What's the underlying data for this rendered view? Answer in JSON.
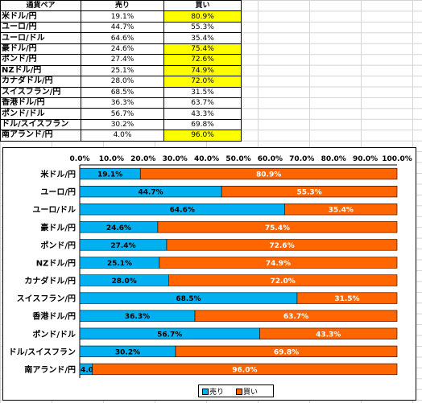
{
  "table": {
    "headers": [
      "通貨ペア",
      "売り",
      "買い"
    ],
    "rows": [
      {
        "pair": "米ドル/円",
        "sell": "19.1%",
        "buy": "80.9%",
        "buy_highlight": true
      },
      {
        "pair": "ユーロ/円",
        "sell": "44.7%",
        "buy": "55.3%",
        "buy_highlight": false
      },
      {
        "pair": "ユーロ/ドル",
        "sell": "64.6%",
        "buy": "35.4%",
        "buy_highlight": false
      },
      {
        "pair": "豪ドル/円",
        "sell": "24.6%",
        "buy": "75.4%",
        "buy_highlight": true
      },
      {
        "pair": "ポンド/円",
        "sell": "27.4%",
        "buy": "72.6%",
        "buy_highlight": true
      },
      {
        "pair": "NZドル/円",
        "sell": "25.1%",
        "buy": "74.9%",
        "buy_highlight": true
      },
      {
        "pair": "カナダドル/円",
        "sell": "28.0%",
        "buy": "72.0%",
        "buy_highlight": true
      },
      {
        "pair": "スイスフラン/円",
        "sell": "68.5%",
        "buy": "31.5%",
        "buy_highlight": false
      },
      {
        "pair": "香港ドル/円",
        "sell": "36.3%",
        "buy": "63.7%",
        "buy_highlight": false
      },
      {
        "pair": "ポンド/ドル",
        "sell": "56.7%",
        "buy": "43.3%",
        "buy_highlight": false
      },
      {
        "pair": "ドル/スイスフラン",
        "sell": "30.2%",
        "buy": "69.8%",
        "buy_highlight": false
      },
      {
        "pair": "南アランド/円",
        "sell": "4.0%",
        "buy": "96.0%",
        "buy_highlight": true
      }
    ],
    "highlight_color": "#ffff00"
  },
  "chart_data": {
    "type": "bar",
    "orientation": "horizontal",
    "stacked": "percent",
    "categories": [
      "米ドル/円",
      "ユーロ/円",
      "ユーロ/ドル",
      "豪ドル/円",
      "ポンド/円",
      "NZドル/円",
      "カナダドル/円",
      "スイスフラン/円",
      "香港ドル/円",
      "ポンド/ドル",
      "ドル/スイスフラン",
      "南アランド/円"
    ],
    "series": [
      {
        "name": "売り",
        "color": "#00b0f0",
        "values": [
          19.1,
          44.7,
          64.6,
          24.6,
          27.4,
          25.1,
          28.0,
          68.5,
          36.3,
          56.7,
          30.2,
          4.0
        ],
        "labels": [
          "19.1%",
          "44.7%",
          "64.6%",
          "24.6%",
          "27.4%",
          "25.1%",
          "28.0%",
          "68.5%",
          "36.3%",
          "56.7%",
          "30.2%",
          "4.0%"
        ]
      },
      {
        "name": "買い",
        "color": "#ff6600",
        "values": [
          80.9,
          55.3,
          35.4,
          75.4,
          72.6,
          74.9,
          72.0,
          31.5,
          63.7,
          43.3,
          69.8,
          96.0
        ],
        "labels": [
          "80.9%",
          "55.3%",
          "35.4%",
          "75.4%",
          "72.6%",
          "74.9%",
          "72.0%",
          "31.5%",
          "63.7%",
          "43.3%",
          "69.8%",
          "96.0%"
        ]
      }
    ],
    "xlim": [
      0,
      100
    ],
    "x_ticks": [
      "0.0%",
      "10.0%",
      "20.0%",
      "30.0%",
      "40.0%",
      "50.0%",
      "60.0%",
      "70.0%",
      "80.0%",
      "90.0%",
      "100.0%"
    ],
    "axis_position": "top",
    "grid": false,
    "legend": {
      "placement": "bottom",
      "entries": [
        "売り",
        "買い"
      ]
    }
  }
}
